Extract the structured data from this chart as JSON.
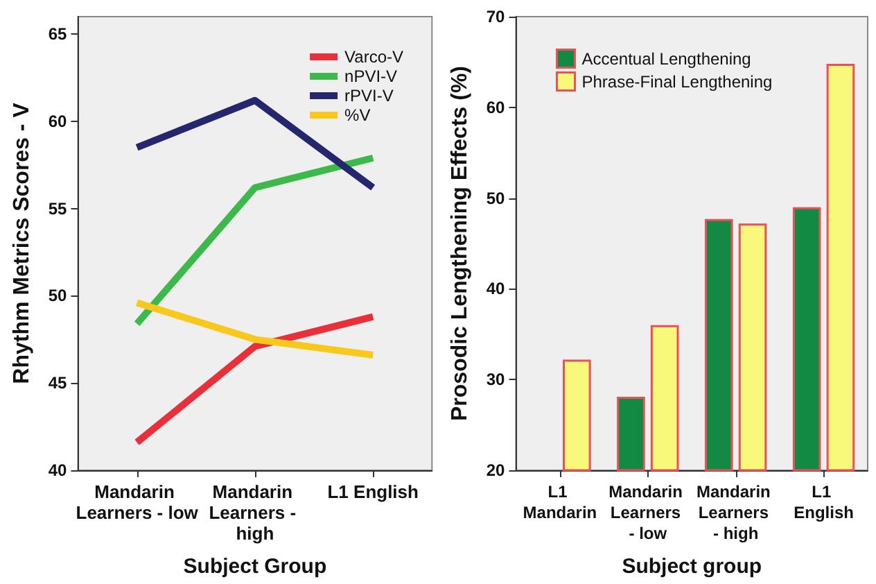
{
  "chart_data": [
    {
      "type": "line",
      "ylabel": "Rhythm Metrics Scores - V",
      "xlabel": "Subject Group",
      "categories": [
        "Mandarin Learners - low",
        "Mandarin Learners - high",
        "L1 English"
      ],
      "ylim": [
        40,
        66
      ],
      "yticks": [
        40,
        45,
        50,
        55,
        60,
        65
      ],
      "grid": false,
      "legend": "top right",
      "marker": "none",
      "line_style": "solid",
      "series": [
        {
          "name": "Varco-V",
          "color": "#e8303a",
          "values": [
            41.6,
            47.1,
            48.8
          ]
        },
        {
          "name": "nPVI-V",
          "color": "#3cb94a",
          "values": [
            48.4,
            56.2,
            57.9
          ]
        },
        {
          "name": "rPVI-V",
          "color": "#25276e",
          "values": [
            58.5,
            61.2,
            56.2
          ]
        },
        {
          "name": "%V",
          "color": "#f8c81c",
          "values": [
            49.6,
            47.5,
            46.6
          ]
        }
      ]
    },
    {
      "type": "bar",
      "ylabel": "Prosodic Lengthening Effects (%)",
      "xlabel": "Subject group",
      "categories": [
        "L1 Mandarin",
        "Mandarin Learners - low",
        "Mandarin Learners - high",
        "L1 English"
      ],
      "ylim": [
        20,
        70
      ],
      "yticks": [
        20,
        30,
        40,
        50,
        60,
        70
      ],
      "grid": false,
      "legend": "top left",
      "series": [
        {
          "name": "Accentual Lengthening",
          "color": "#128a44",
          "values": [
            null,
            28.1,
            47.7,
            49.0
          ]
        },
        {
          "name": "Phrase-Final Lengthening",
          "color": "#f8f87a",
          "values": [
            32.2,
            36.0,
            47.2,
            64.8
          ]
        }
      ]
    }
  ]
}
